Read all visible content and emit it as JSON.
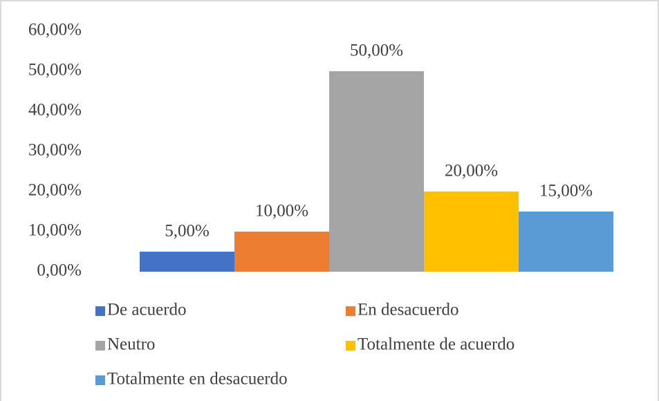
{
  "chart_data": {
    "type": "bar",
    "categories": [
      null
    ],
    "series": [
      {
        "name": "De acuerdo",
        "color": "#4472c4",
        "values": [
          5
        ],
        "value_labels": [
          "5,00%"
        ]
      },
      {
        "name": "En desacuerdo",
        "color": "#ed7d31",
        "values": [
          10
        ],
        "value_labels": [
          "10,00%"
        ]
      },
      {
        "name": "Neutro",
        "color": "#a5a5a5",
        "values": [
          50
        ],
        "value_labels": [
          "50,00%"
        ]
      },
      {
        "name": "Totalmente de acuerdo",
        "color": "#ffc000",
        "values": [
          20
        ],
        "value_labels": [
          "20,00%"
        ]
      },
      {
        "name": "Totalmente en desacuerdo",
        "color": "#5b9bd5",
        "values": [
          15
        ],
        "value_labels": [
          "15,00%"
        ]
      }
    ],
    "ylim": [
      0,
      60
    ],
    "yticks": [
      {
        "value": 0,
        "label": "0,00%"
      },
      {
        "value": 10,
        "label": "10,00%"
      },
      {
        "value": 20,
        "label": "20,00%"
      },
      {
        "value": 30,
        "label": "30,00%"
      },
      {
        "value": 40,
        "label": "40,00%"
      },
      {
        "value": 50,
        "label": "50,00%"
      },
      {
        "value": 60,
        "label": "60,00%"
      }
    ],
    "grid": false,
    "legend": "bottom"
  }
}
